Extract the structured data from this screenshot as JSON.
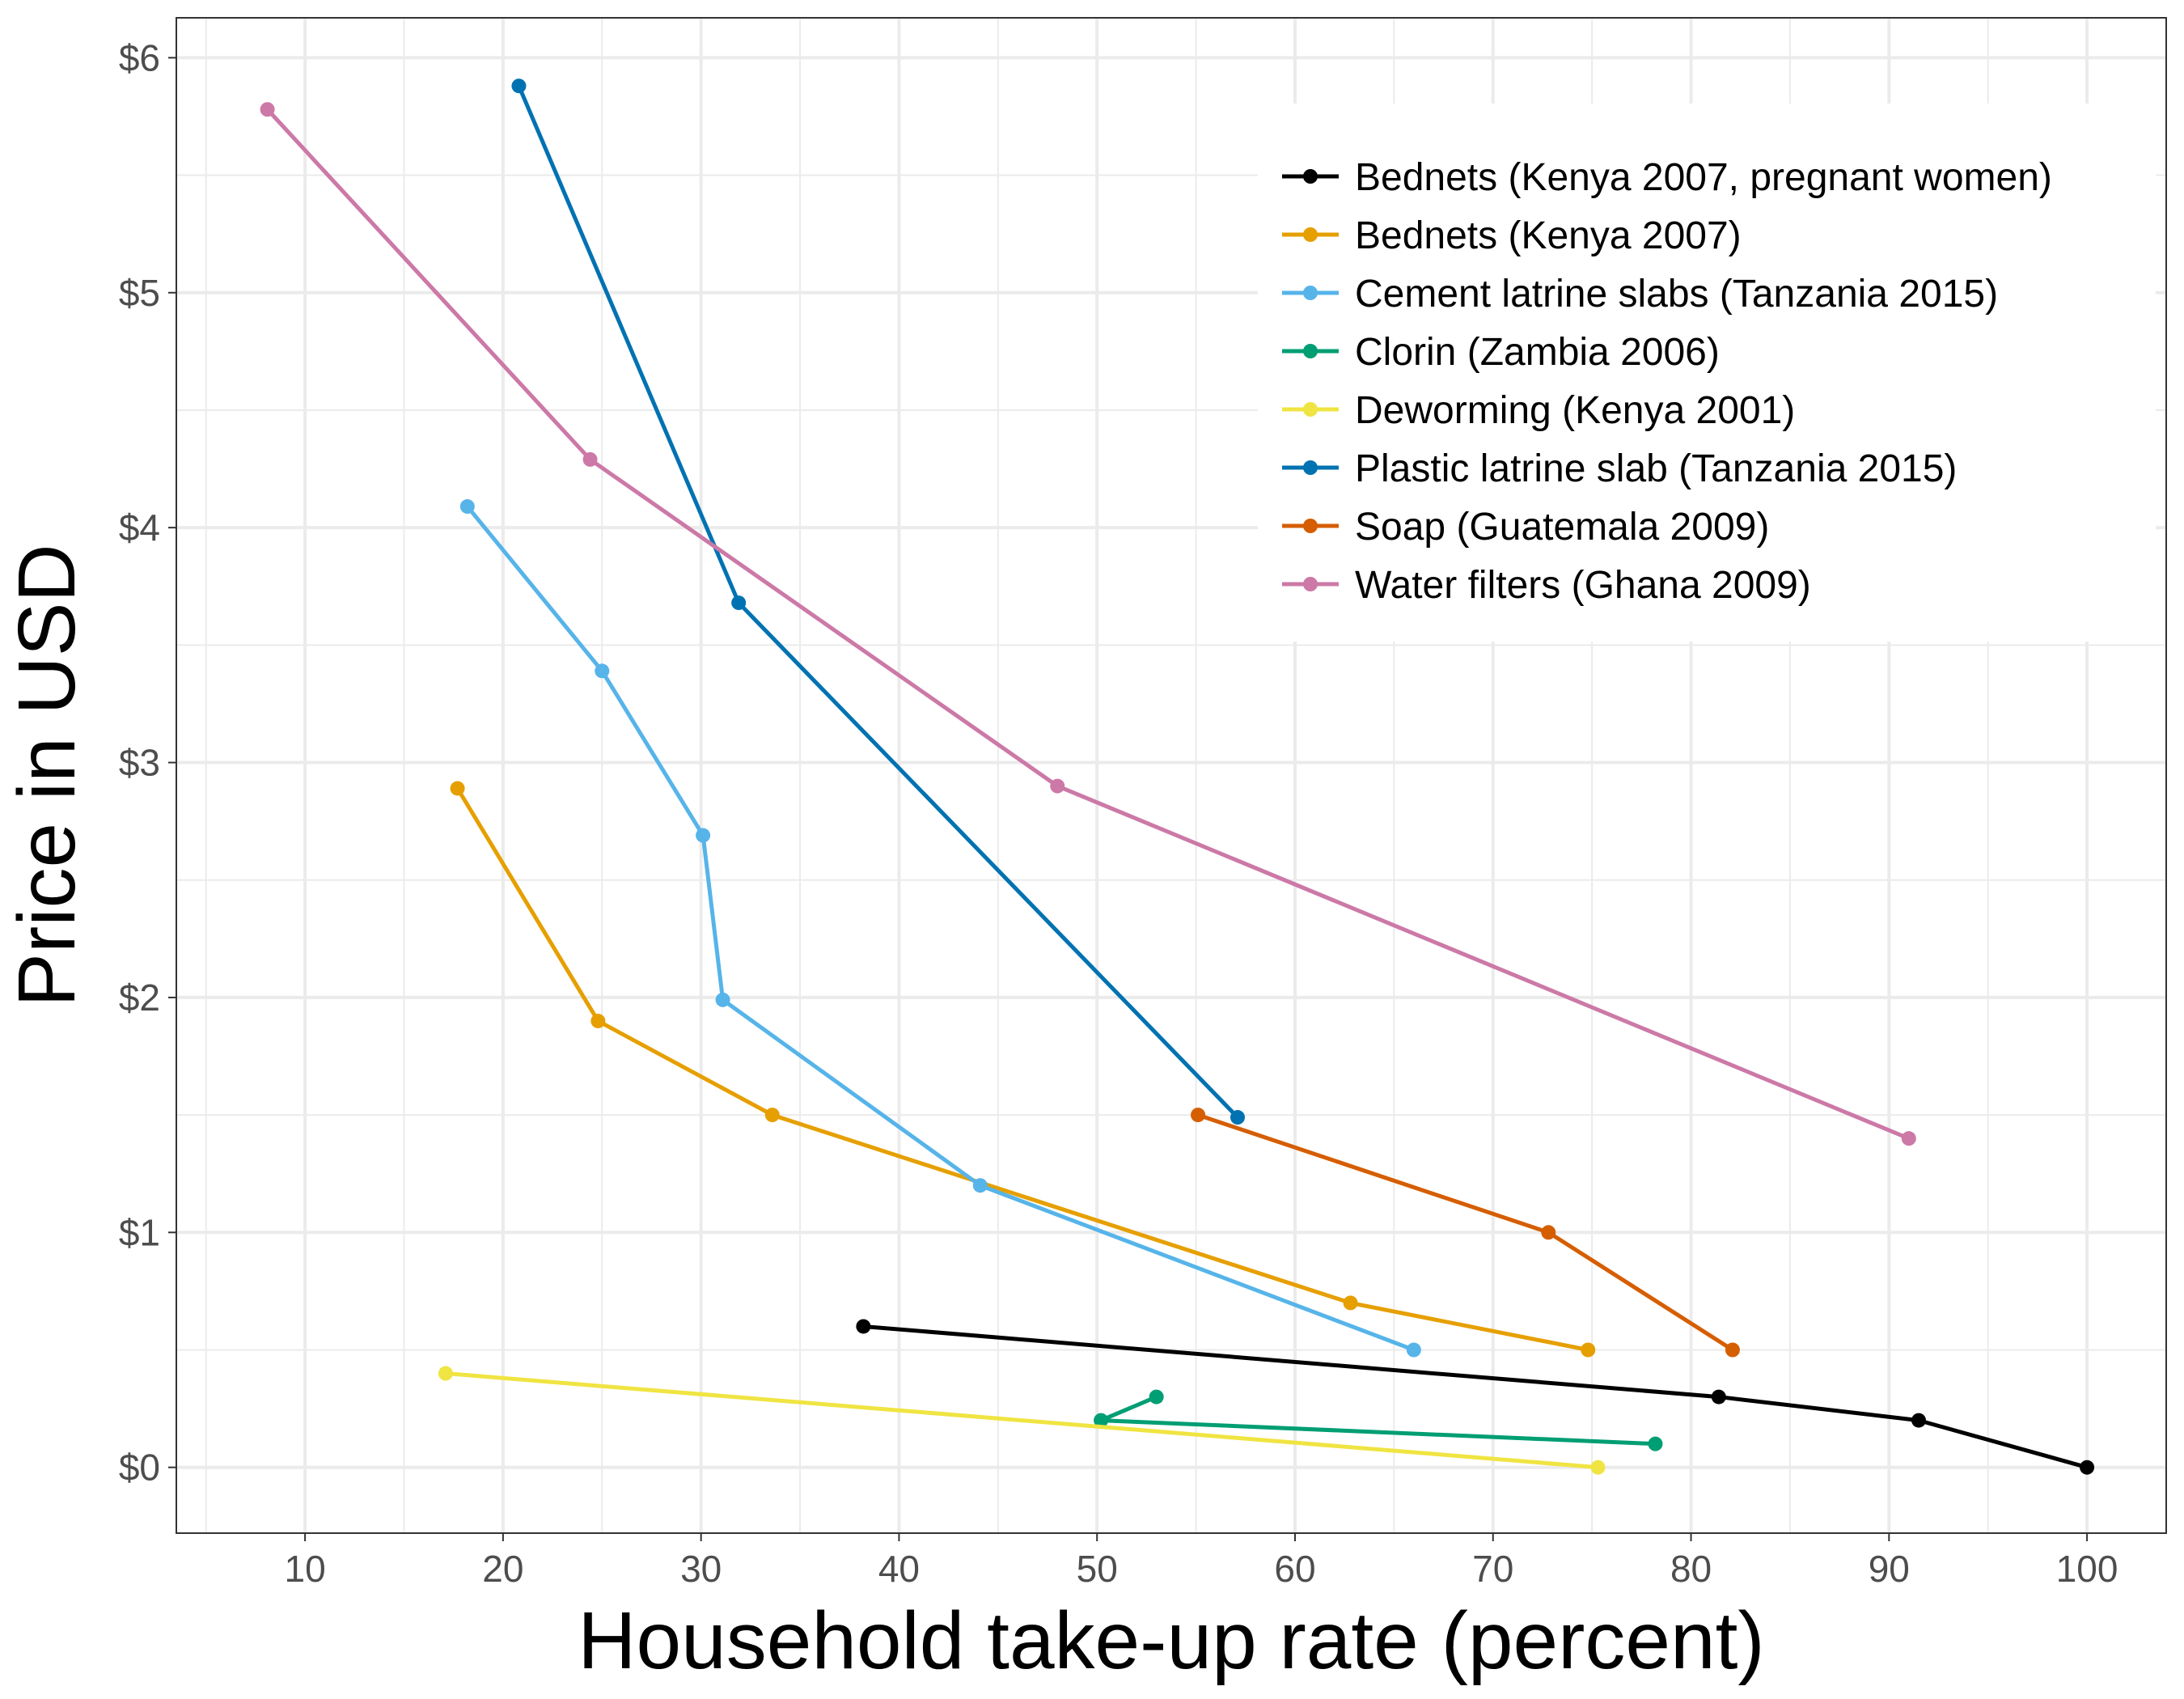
{
  "chart_data": {
    "type": "line",
    "title": "",
    "xlabel": "Household take-up rate (percent)",
    "ylabel": "Price in USD",
    "xlim": [
      3.5,
      104
    ],
    "ylim": [
      -0.28,
      6.17
    ],
    "xticks": [
      10,
      20,
      30,
      40,
      50,
      60,
      70,
      80,
      90,
      100
    ],
    "xtick_labels": [
      "10",
      "20",
      "30",
      "40",
      "50",
      "60",
      "70",
      "80",
      "90",
      "100"
    ],
    "yticks": [
      0,
      1,
      2,
      3,
      4,
      5,
      6
    ],
    "ytick_labels": [
      "$0",
      "$1",
      "$2",
      "$3",
      "$4",
      "$5",
      "$6"
    ],
    "grid": true,
    "legend_position": "top-right",
    "series": [
      {
        "name": "Bednets (Kenya 2007, pregnant women)",
        "color": "#000000",
        "points": [
          [
            38.2,
            0.6
          ],
          [
            81.4,
            0.3
          ],
          [
            91.5,
            0.2
          ],
          [
            100,
            0.0
          ]
        ]
      },
      {
        "name": "Bednets (Kenya 2007)",
        "color": "#E69F00",
        "points": [
          [
            17.7,
            2.89
          ],
          [
            24.8,
            1.9
          ],
          [
            33.6,
            1.5
          ],
          [
            62.8,
            0.7
          ],
          [
            74.8,
            0.5
          ]
        ]
      },
      {
        "name": "Cement latrine slabs (Tanzania 2015)",
        "color": "#56B4E9",
        "points": [
          [
            18.2,
            4.09
          ],
          [
            25.0,
            3.39
          ],
          [
            30.1,
            2.69
          ],
          [
            31.1,
            1.99
          ],
          [
            44.1,
            1.2
          ],
          [
            66.0,
            0.5
          ]
        ]
      },
      {
        "name": "Clorin (Zambia 2006)",
        "color": "#009E73",
        "points": [
          [
            53.0,
            0.3
          ],
          [
            50.2,
            0.2
          ],
          [
            78.2,
            0.1
          ]
        ]
      },
      {
        "name": "Deworming (Kenya 2001)",
        "color": "#F0E442",
        "points": [
          [
            17.1,
            0.4
          ],
          [
            75.3,
            0.0
          ]
        ]
      },
      {
        "name": "Plastic latrine slab (Tanzania 2015)",
        "color": "#0072B2",
        "points": [
          [
            20.8,
            5.88
          ],
          [
            31.9,
            3.68
          ],
          [
            57.1,
            1.49
          ]
        ]
      },
      {
        "name": "Soap (Guatemala 2009)",
        "color": "#D55E00",
        "points": [
          [
            55.1,
            1.5
          ],
          [
            72.8,
            1.0
          ],
          [
            82.1,
            0.5
          ]
        ]
      },
      {
        "name": "Water filters (Ghana 2009)",
        "color": "#CC79A7",
        "points": [
          [
            8.1,
            5.78
          ],
          [
            24.4,
            4.29
          ],
          [
            48.0,
            2.9
          ],
          [
            91.0,
            1.4
          ]
        ]
      }
    ]
  }
}
